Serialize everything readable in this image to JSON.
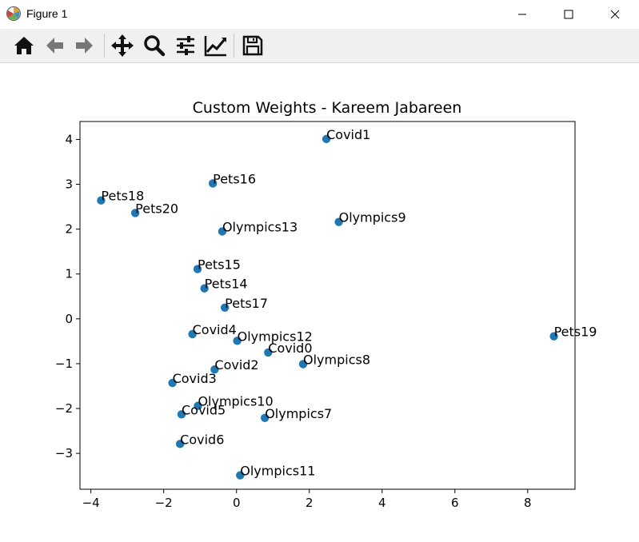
{
  "window": {
    "title": "Figure 1"
  },
  "toolbar": {
    "buttons": [
      {
        "name": "home-icon"
      },
      {
        "name": "back-arrow-icon"
      },
      {
        "name": "forward-arrow-icon"
      },
      {
        "name": "pan-icon"
      },
      {
        "name": "zoom-icon"
      },
      {
        "name": "configure-subplots-icon"
      },
      {
        "name": "edit-axis-icon"
      },
      {
        "name": "save-icon"
      }
    ]
  },
  "chart_data": {
    "type": "scatter",
    "title": "Custom Weights - Kareem Jabareen",
    "xlabel": "",
    "ylabel": "",
    "xlim": [
      -4.3,
      9.3
    ],
    "ylim": [
      -3.8,
      4.4
    ],
    "xticks": [
      -4,
      -2,
      0,
      2,
      4,
      6,
      8
    ],
    "yticks": [
      4,
      3,
      2,
      1,
      0,
      -1,
      -2,
      -3
    ],
    "xtick_labels": [
      "−4",
      "−2",
      "0",
      "2",
      "4",
      "6",
      "8"
    ],
    "ytick_labels": [
      "4",
      "3",
      "2",
      "1",
      "0",
      "−1",
      "−2",
      "−3"
    ],
    "grid": false,
    "marker_color": "#1f77b4",
    "points": [
      {
        "label": "Covid1",
        "x": 2.47,
        "y": 4.01
      },
      {
        "label": "Pets16",
        "x": -0.65,
        "y": 3.02
      },
      {
        "label": "Pets18",
        "x": -3.72,
        "y": 2.64
      },
      {
        "label": "Pets20",
        "x": -2.78,
        "y": 2.36
      },
      {
        "label": "Olympics9",
        "x": 2.81,
        "y": 2.16
      },
      {
        "label": "Olympics13",
        "x": -0.39,
        "y": 1.95
      },
      {
        "label": "Pets15",
        "x": -1.07,
        "y": 1.11
      },
      {
        "label": "Pets14",
        "x": -0.88,
        "y": 0.68
      },
      {
        "label": "Pets17",
        "x": -0.32,
        "y": 0.25
      },
      {
        "label": "Pets19",
        "x": 8.72,
        "y": -0.39
      },
      {
        "label": "Covid4",
        "x": -1.21,
        "y": -0.34
      },
      {
        "label": "Olympics12",
        "x": 0.02,
        "y": -0.49
      },
      {
        "label": "Covid0",
        "x": 0.87,
        "y": -0.75
      },
      {
        "label": "Olympics8",
        "x": 1.83,
        "y": -1.01
      },
      {
        "label": "Covid2",
        "x": -0.6,
        "y": -1.13
      },
      {
        "label": "Covid3",
        "x": -1.76,
        "y": -1.43
      },
      {
        "label": "Olympics10",
        "x": -1.06,
        "y": -1.94
      },
      {
        "label": "Covid5",
        "x": -1.51,
        "y": -2.13
      },
      {
        "label": "Olympics7",
        "x": 0.78,
        "y": -2.21
      },
      {
        "label": "Covid6",
        "x": -1.55,
        "y": -2.79
      },
      {
        "label": "Olympics11",
        "x": 0.1,
        "y": -3.49
      }
    ]
  }
}
